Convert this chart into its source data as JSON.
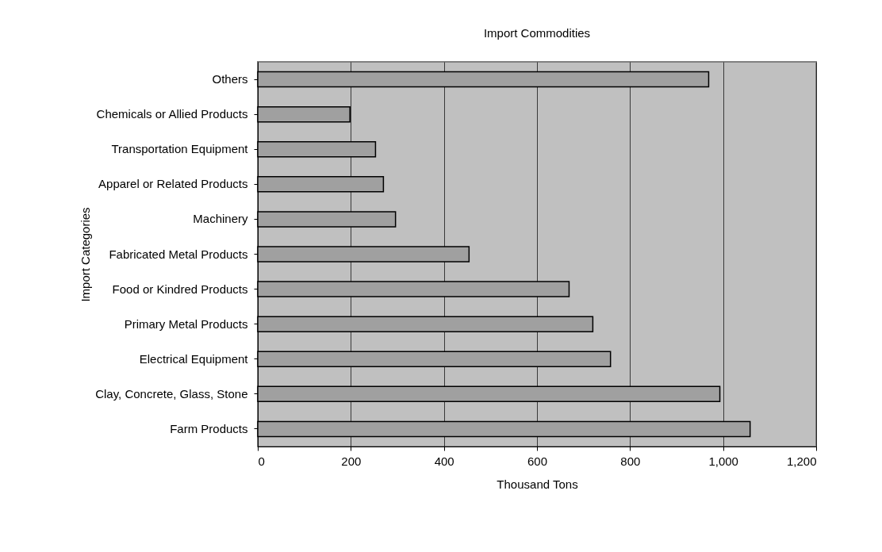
{
  "chart_data": {
    "type": "bar",
    "orientation": "horizontal",
    "title": "Import Commodities",
    "xlabel": "Thousand Tons",
    "ylabel": "Import Categories",
    "categories": [
      "Others",
      "Chemicals or Allied Products",
      "Transportation Equipment",
      "Apparel or Related Products",
      "Machinery",
      "Fabricated Metal Products",
      "Food or Kindred Products",
      "Primary Metal Products",
      "Electrical Equipment",
      "Clay, Concrete, Glass, Stone",
      "Farm Products"
    ],
    "values": [
      969,
      198,
      253,
      270,
      296,
      454,
      669,
      720,
      758,
      993,
      1058
    ],
    "color": "#a0a0a0",
    "xlim": [
      0,
      1200
    ],
    "xticks": [
      0,
      200,
      400,
      600,
      800,
      {
        "value": 1000,
        "label": "1,000"
      },
      {
        "value": 1200,
        "label": "1,200"
      }
    ],
    "grid": "x"
  }
}
